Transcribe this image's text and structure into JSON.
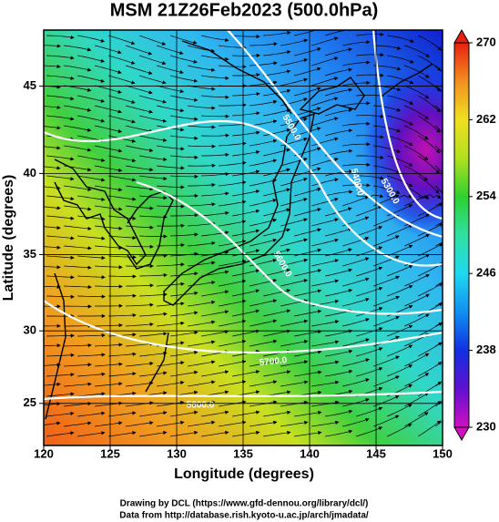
{
  "title": "MSM 21Z26Feb2023 (500.0hPa)",
  "x_axis": {
    "label": "Longitude (degrees)",
    "lim": [
      120,
      150
    ],
    "ticks": [
      120,
      125,
      130,
      135,
      140,
      145,
      150
    ]
  },
  "y_axis": {
    "label": "Latitude  (degrees)",
    "lim": [
      22,
      48
    ],
    "scale": "mercator",
    "ticks": [
      25,
      30,
      35,
      40,
      45
    ]
  },
  "colorbar": {
    "lim": [
      230,
      270
    ],
    "ticks": [
      230,
      238,
      246,
      254,
      262,
      270
    ]
  },
  "contour_labels": [
    "5800.0",
    "5700.0",
    "5600.0",
    "5500.0",
    "5400.0",
    "5300.0"
  ],
  "footer": [
    "Drawing by DCL (https://www.gfd-dennou.org/library/dcl/)",
    "Data from http://database.rish.kyoto-u.ac.jp/arch/jmadata/"
  ]
}
